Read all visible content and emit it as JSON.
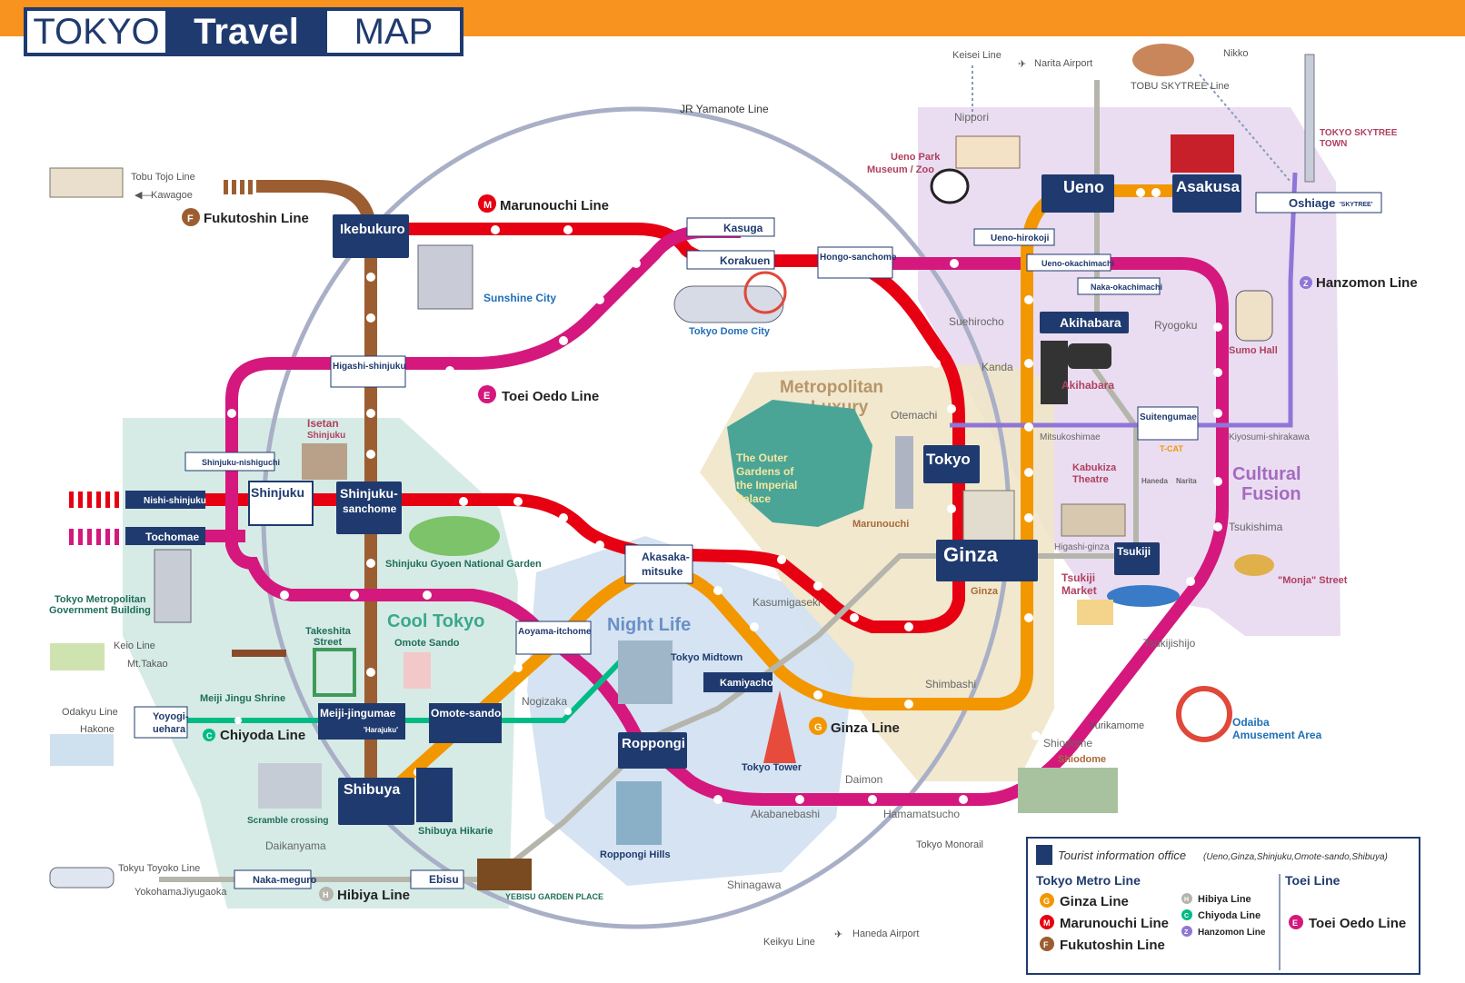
{
  "logo": {
    "part1": "TOKYO",
    "part2": "Travel",
    "part3": "MAP"
  },
  "colors": {
    "orange_bar": "#f7931e",
    "navy": "#1f3a6e",
    "marunouchi": "#e60012",
    "oedo": "#d4187d",
    "ginza": "#f39700",
    "fukutoshin": "#9c5e31",
    "chiyoda": "#00bb85",
    "hibiya": "#b5b5ac",
    "hanzomon": "#8f76d6",
    "yamanote": "#a0a0b0"
  },
  "lines": {
    "jr_yamanote": "JR Yamanote Line",
    "marunouchi": "Marunouchi Line",
    "fukutoshin": "Fukutoshin Line",
    "toei_oedo": "Toei Oedo Line",
    "chiyoda": "Chiyoda Line",
    "ginza": "Ginza Line",
    "hibiya": "Hibiya Line",
    "hanzomon": "Hanzomon Line",
    "tobu_tojo": "Tobu Tojo Line",
    "keio": "Keio Line",
    "odakyu": "Odakyu Line",
    "tokyu_toyoko": "Tokyu Toyoko Line",
    "keisei": "Keisei Line",
    "tobu_skytree": "TOBU SKYTREE Line",
    "tokyo_monorail": "Tokyo Monorail",
    "keikyu": "Keikyu Line",
    "yurikamome": "Yurikamome"
  },
  "destinations": {
    "kawagoe": "Kawagoe",
    "mt_takao": "Mt.Takao",
    "hakone": "Hakone",
    "yokohama": "Yokohama",
    "narita": "Narita Airport",
    "nikko": "Nikko",
    "haneda": "Haneda Airport"
  },
  "major_stations": {
    "ikebukuro": "Ikebukuro",
    "shinjuku": "Shinjuku",
    "shinjuku_sanchome_1": "Shinjuku-",
    "shinjuku_sanchome_2": "sanchome",
    "shibuya": "Shibuya",
    "roppongi": "Roppongi",
    "ginza": "Ginza",
    "tokyo": "Tokyo",
    "ueno": "Ueno",
    "asakusa": "Asakusa",
    "akihabara": "Akihabara",
    "tsukiji": "Tsukiji"
  },
  "stations": {
    "kasuga": "Kasuga",
    "korakuen": "Korakuen",
    "hongo_sanchome": "Hongo-sanchome",
    "higashi_shinjuku": "Higashi-shinjuku",
    "shinjuku_nishiguchi": "Shinjuku-nishiguchi",
    "nishi_shinjuku": "Nishi-shinjuku",
    "tochomae": "Tochomae",
    "akasaka_mitsuke_1": "Akasaka-",
    "akasaka_mitsuke_2": "mitsuke",
    "aoyama_itchome": "Aoyama-itchome",
    "meiji_jingumae": "Meiji-jingumae",
    "harajuku": "'Harajuku'",
    "omote_sando": "Omote-sando",
    "yoyogi_uehara_1": "Yoyogi-",
    "yoyogi_uehara_2": "uehara",
    "kamiyacho": "Kamiyacho",
    "naka_meguro": "Naka-meguro",
    "ebisu": "Ebisu",
    "ueno_hirokoji": "Ueno-hirokoji",
    "ueno_okachimachi": "Ueno-okachimachi",
    "naka_okachimachi": "Naka-okachimachi",
    "suitengumae": "Suitengumae",
    "oshiage": "Oshiage",
    "oshiage_tag": "'SKYTREE'"
  },
  "jr_stations": {
    "nippori": "Nippori",
    "kanda": "Kanda",
    "suehirocho": "Suehirocho",
    "ryogoku": "Ryogoku",
    "otemachi": "Otemachi",
    "mitsukoshimae": "Mitsukoshimae",
    "kiyosumi_shirakawa": "Kiyosumi-shirakawa",
    "higashi_ginza": "Higashi-ginza",
    "tsukishima": "Tsukishima",
    "tsukijishijo": "Tsukijishijo",
    "kasumigaseki": "Kasumigaseki",
    "nogizaka": "Nogizaka",
    "shimbashi": "Shimbashi",
    "shiodome": "Shiodome",
    "daimon": "Daimon",
    "hamamatsucho": "Hamamatsucho",
    "akabanebashi": "Akabanebashi",
    "shinagawa": "Shinagawa",
    "daikanyama": "Daikanyama",
    "jiyugaoka": "Jiyugaoka"
  },
  "areas": {
    "cool_tokyo": "Cool Tokyo",
    "night_life": "Night Life",
    "metro_luxury_1": "Metropolitan",
    "metro_luxury_2": "Luxury",
    "cultural_1": "Cultural",
    "cultural_2": "Fusion"
  },
  "spots": {
    "sunshine_city": "Sunshine City",
    "tokyo_dome_city": "Tokyo Dome City",
    "ueno_park_1": "Ueno Park",
    "ueno_park_2": "Museum / Zoo",
    "skytree_town_1": "TOKYO SKYTREE",
    "skytree_town_2": "TOWN",
    "sumo_hall": "Sumo Hall",
    "akihabara_spot": "Akihabara",
    "isetan_1": "Isetan",
    "isetan_2": "Shinjuku",
    "shinjuku_gyoen": "Shinjuku Gyoen National Garden",
    "metro_gov_1": "Tokyo Metropolitan",
    "metro_gov_2": "Government Building",
    "outer_gardens_1": "The Outer",
    "outer_gardens_2": "Gardens of",
    "outer_gardens_3": "the Imperial",
    "outer_gardens_4": "Palace",
    "marunouchi": "Marunouchi",
    "ginza_spot": "Ginza",
    "kabukiza_1": "Kabukiza",
    "kabukiza_2": "Theatre",
    "tsukiji_market_1": "Tsukiji",
    "tsukiji_market_2": "Market",
    "monja": "\"Monja\" Street",
    "takeshita_1": "Takeshita",
    "takeshita_2": "Street",
    "omote_sando_spot": "Omote Sando",
    "meiji_shrine": "Meiji Jingu Shrine",
    "scramble": "Scramble crossing",
    "shibuya_hikarie": "Shibuya Hikarie",
    "tokyo_midtown": "Tokyo Midtown",
    "tokyo_tower": "Tokyo Tower",
    "roppongi_hills": "Roppongi Hills",
    "yebisu": "YEBISU GARDEN PLACE",
    "odaiba_1": "Odaiba",
    "odaiba_2": "Amusement Area",
    "shiodome_spot": "Shiodome",
    "tcat": "T-CAT",
    "haneda_small": "Haneda",
    "narita_small": "Narita"
  },
  "legend": {
    "info_office": "Tourist information office",
    "info_note": "(Ueno,Ginza,Shinjuku,Omote-sando,Shibuya)",
    "tokyo_metro": "Tokyo Metro Line",
    "toei": "Toei Line",
    "ginza": "Ginza Line",
    "marunouchi": "Marunouchi Line",
    "fukutoshin": "Fukutoshin Line",
    "hibiya": "Hibiya Line",
    "chiyoda": "Chiyoda Line",
    "hanzomon": "Hanzomon Line",
    "toei_oedo": "Toei Oedo Line"
  },
  "line_badges": {
    "marunouchi": "M",
    "fukutoshin": "F",
    "toei_oedo": "E",
    "chiyoda": "C",
    "ginza": "G",
    "hibiya": "H",
    "hanzomon": "Z"
  }
}
